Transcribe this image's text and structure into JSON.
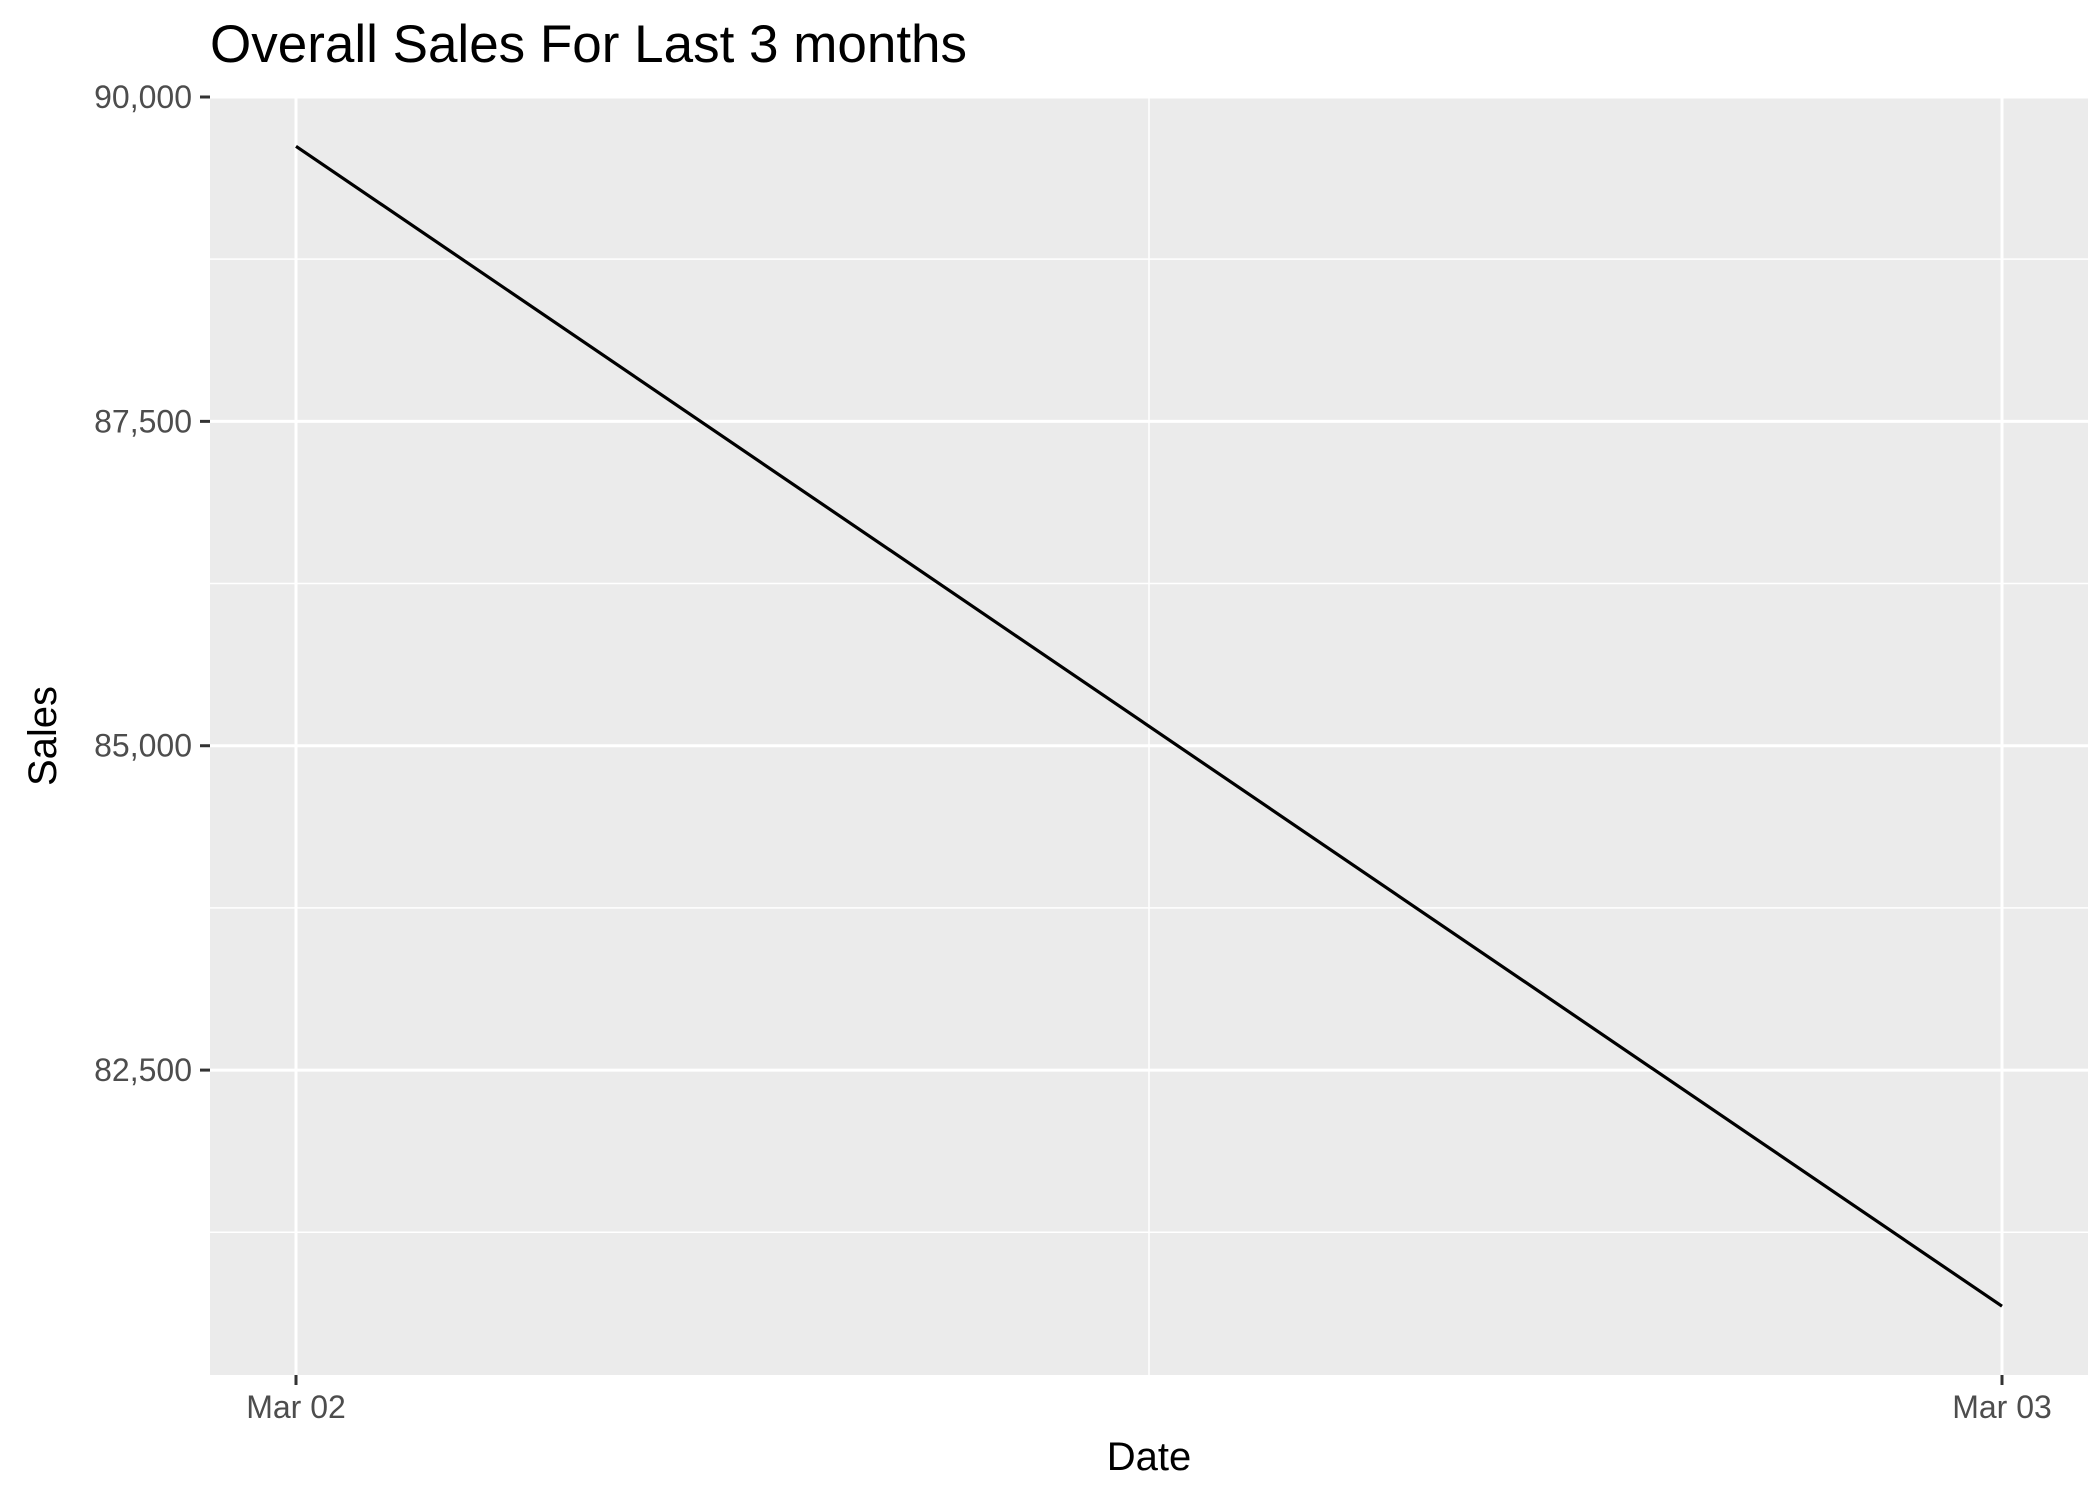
{
  "chart_data": {
    "type": "line",
    "title": "Overall Sales For Last 3 months",
    "xlabel": "Date",
    "ylabel": "Sales",
    "x": [
      "Mar 02",
      "Mar 03"
    ],
    "x_ticks": [
      "Mar 02",
      "Mar 03"
    ],
    "y_ticks": [
      "82,500",
      "85,000",
      "87,500",
      "90,000"
    ],
    "series": [
      {
        "values": [
          89620,
          80680
        ],
        "color": "#000000"
      }
    ],
    "ylim": [
      80150,
      90000
    ],
    "grid": true,
    "background": "#ebebeb",
    "gridline_color": "#ffffff"
  }
}
